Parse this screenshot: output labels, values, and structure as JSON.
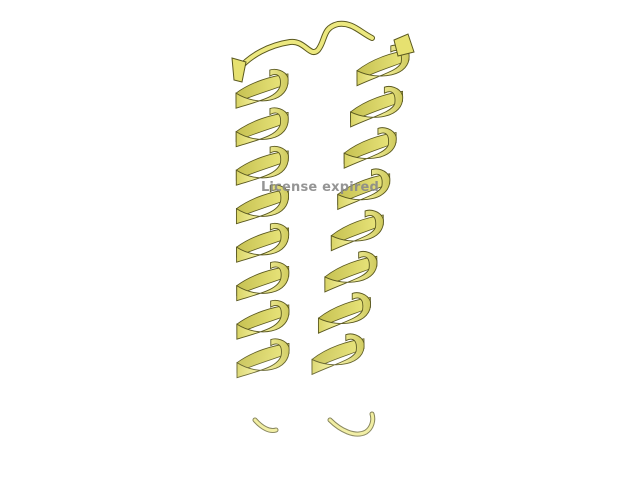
{
  "viewer": {
    "background": "#ffffff",
    "watermark_text": "License expired",
    "ribbon_colors": {
      "light": "#f6f29a",
      "mid": "#e4df6c",
      "dark": "#b7b24a",
      "edge": "#5a581f"
    }
  }
}
